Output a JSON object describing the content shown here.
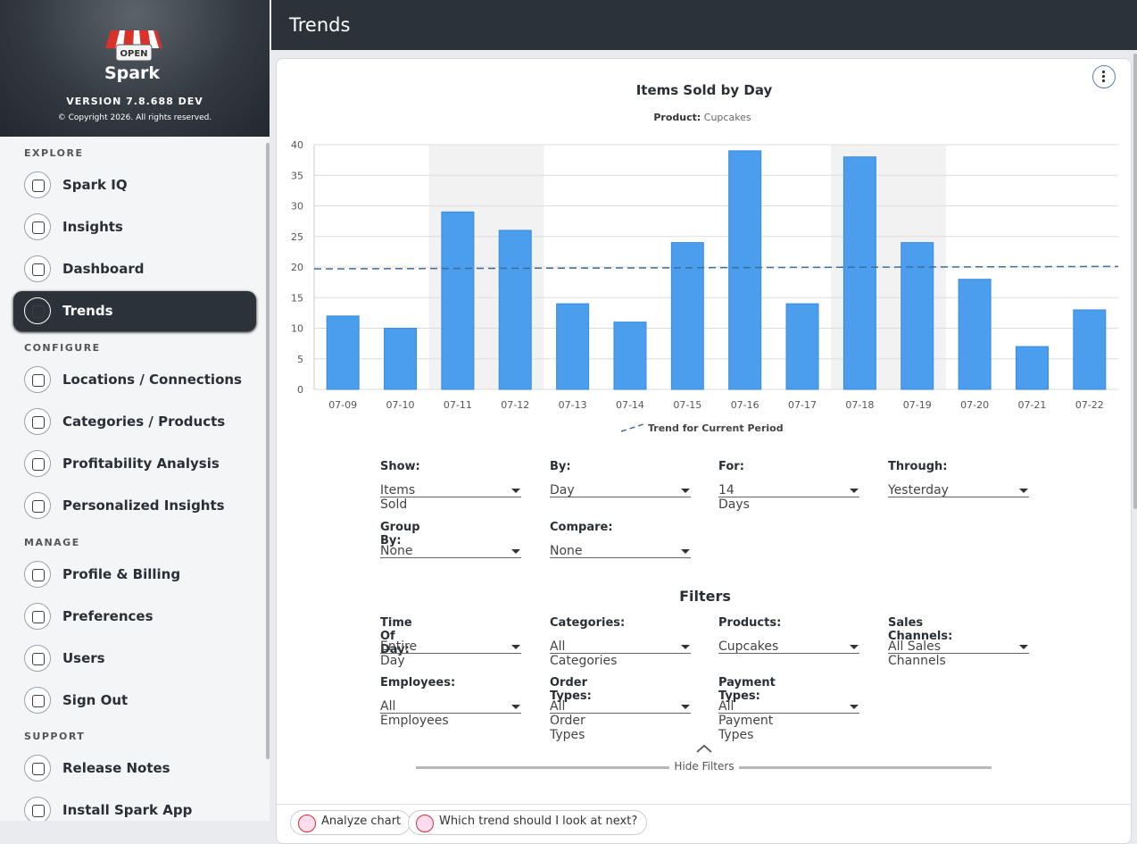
{
  "sidebar": {
    "logo_sign": "OPEN",
    "brand": "Spark",
    "version": "VERSION 7.8.688 DEV",
    "copyright": "© Copyright 2026. All rights reserved.",
    "sections": [
      {
        "title": "EXPLORE",
        "items": [
          "Spark IQ",
          "Insights",
          "Dashboard",
          "Trends"
        ]
      },
      {
        "title": "CONFIGURE",
        "items": [
          "Locations / Connections",
          "Categories / Products",
          "Profitability Analysis",
          "Personalized Insights"
        ]
      },
      {
        "title": "MANAGE",
        "items": [
          "Profile & Billing",
          "Preferences",
          "Users",
          "Sign Out"
        ]
      },
      {
        "title": "SUPPORT",
        "items": [
          "Release Notes",
          "Install Spark App"
        ]
      }
    ],
    "active": "Trends"
  },
  "header": {
    "title": "Trends"
  },
  "chart_data": {
    "type": "bar",
    "title": "Items Sold by Day",
    "subtitle_label": "Product:",
    "subtitle_value": "Cupcakes",
    "categories": [
      "07-09",
      "07-10",
      "07-11",
      "07-12",
      "07-13",
      "07-14",
      "07-15",
      "07-16",
      "07-17",
      "07-18",
      "07-19",
      "07-20",
      "07-21",
      "07-22"
    ],
    "values": [
      12,
      10,
      29,
      26,
      14,
      11,
      24,
      39,
      14,
      38,
      24,
      18,
      7,
      13
    ],
    "color": "#4b9ded",
    "highlight_color": "#f2f2f2",
    "highlighted": [
      2,
      3,
      9,
      10
    ],
    "ylim": [
      0,
      40
    ],
    "yticks": [
      0,
      5,
      10,
      15,
      20,
      25,
      30,
      35,
      40
    ],
    "grid": true,
    "trend": {
      "name": "Trend for Current Period",
      "start": 19.7,
      "end": 20.1,
      "color": "#3d6e9a"
    }
  },
  "controls": [
    {
      "label": "Show:",
      "value": "Items Sold"
    },
    {
      "label": "By:",
      "value": "Day"
    },
    {
      "label": "For:",
      "value": "14 Days"
    },
    {
      "label": "Through:",
      "value": "Yesterday"
    },
    {
      "label": "Group By:",
      "value": "None"
    },
    {
      "label": "Compare:",
      "value": "None"
    }
  ],
  "filters": {
    "title": "Filters",
    "fields": [
      {
        "label": "Time Of Day:",
        "value": "Entire Day"
      },
      {
        "label": "Categories:",
        "value": "All Categories"
      },
      {
        "label": "Products:",
        "value": "Cupcakes"
      },
      {
        "label": "Sales Channels:",
        "value": "All Sales Channels"
      },
      {
        "label": "Employees:",
        "value": "All Employees"
      },
      {
        "label": "Order Types:",
        "value": "All Order Types"
      },
      {
        "label": "Payment Types:",
        "value": "All Payment Types"
      }
    ],
    "hide": "Hide Filters"
  },
  "suggestions": [
    "Analyze chart",
    "Which trend should I look at next?"
  ]
}
